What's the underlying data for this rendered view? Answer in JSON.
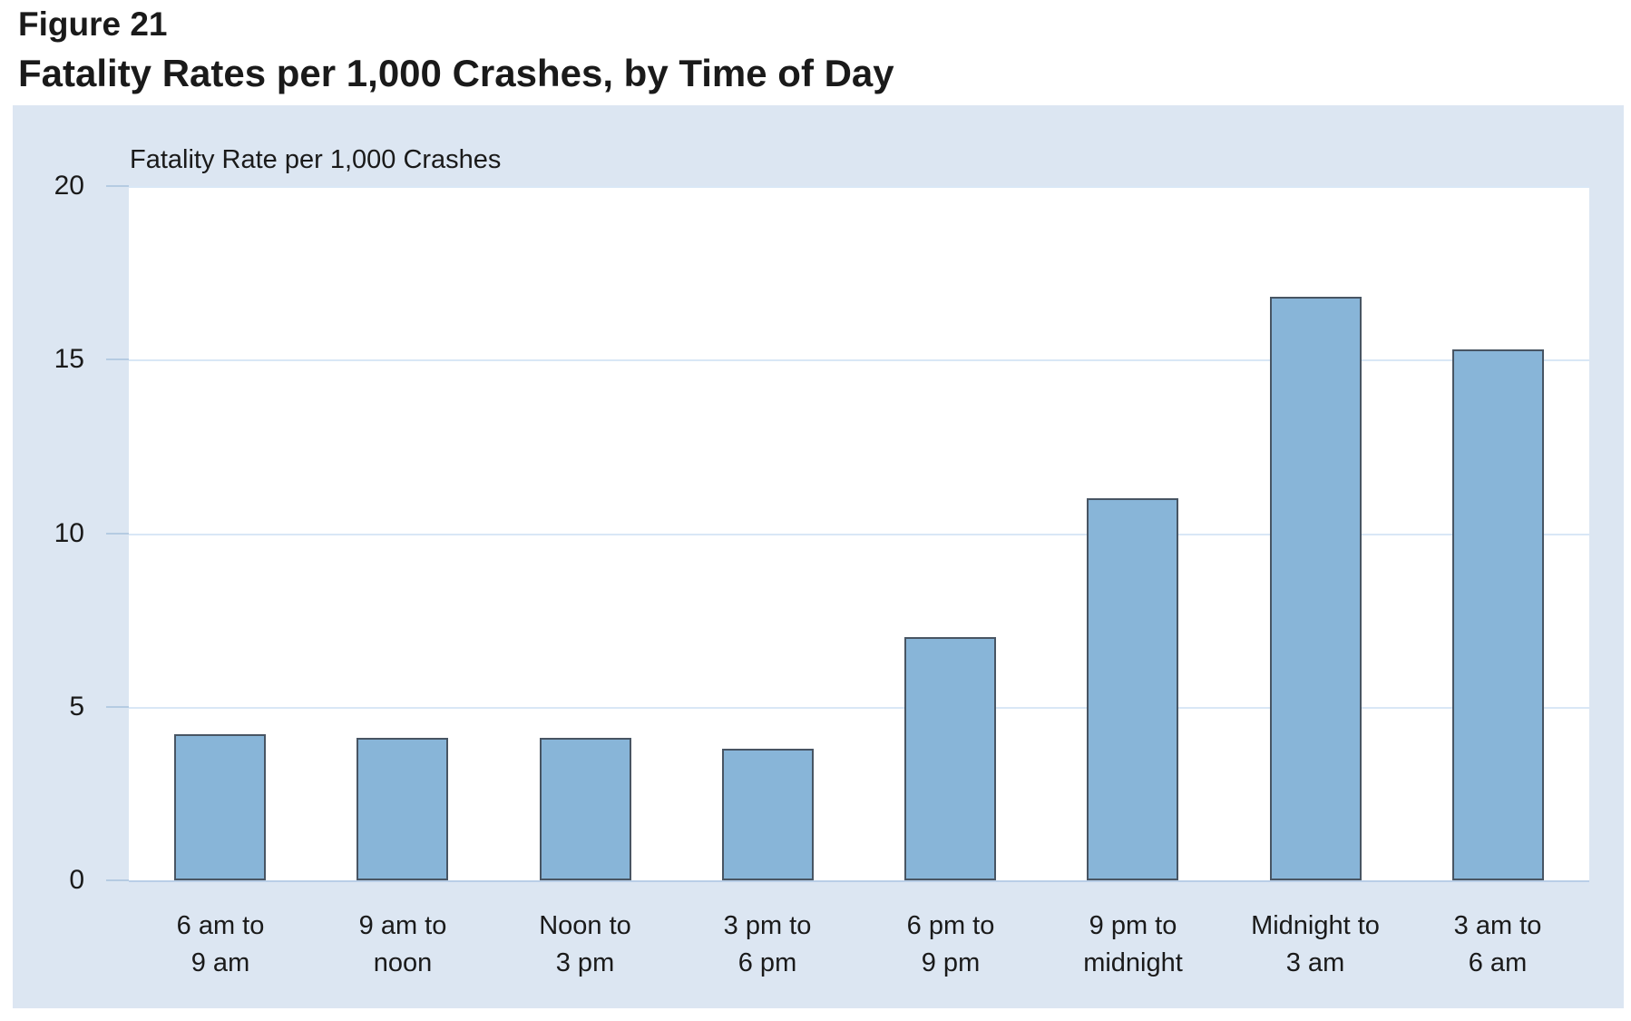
{
  "figure": {
    "label": "Figure 21",
    "title": "Fatality Rates per 1,000 Crashes, by Time of Day"
  },
  "chart_data": {
    "type": "bar",
    "axis_title": "Fatality Rate per 1,000 Crashes",
    "categories": [
      "6 am to\n9 am",
      "9 am to\nnoon",
      "Noon to\n3 pm",
      "3 pm to\n6 pm",
      "6 pm to\n9 pm",
      "9 pm to\nmidnight",
      "Midnight to\n3 am",
      "3 am to\n6 am"
    ],
    "values": [
      4.2,
      4.1,
      4.1,
      3.8,
      7.0,
      11.0,
      16.8,
      15.3
    ],
    "ylim": [
      0,
      20
    ],
    "yticks": [
      0,
      5,
      10,
      15,
      20
    ],
    "xlabel": "",
    "ylabel": "Fatality Rate per 1,000 Crashes",
    "grid": "horizontal",
    "legend": "none",
    "colors": {
      "chart_bg": "#DCE6F2",
      "plot_bg": "#FFFFFF",
      "bar_fill": "#88B5D8",
      "bar_border": "#485563",
      "gridline": "#D9E7F6",
      "tick": "#B5CBE2",
      "axis_line": "#B9CEE7",
      "text": "#1A1A1A"
    }
  }
}
